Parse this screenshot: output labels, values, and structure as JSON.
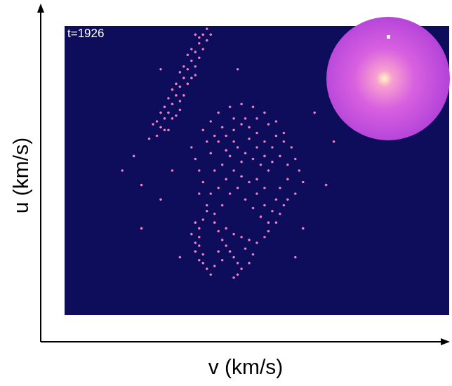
{
  "chart_data": {
    "type": "scatter",
    "xlabel": "v (km/s)",
    "ylabel": "u (km/s)",
    "annotations": [
      "t=1926"
    ],
    "xlim": [
      0,
      100
    ],
    "ylim": [
      0,
      100
    ],
    "tick_labels": false,
    "grid": false,
    "color": "#f080c0",
    "marker": "dot",
    "x": [
      24,
      25,
      26,
      27,
      28,
      29,
      30,
      31,
      32,
      33,
      34,
      35,
      36,
      37,
      26,
      28,
      30,
      32,
      34,
      36,
      23,
      25,
      27,
      29,
      31,
      33,
      35,
      27,
      29,
      31,
      33,
      35,
      37,
      22,
      24,
      28,
      30,
      32,
      34,
      26,
      30,
      34,
      38,
      40,
      42,
      44,
      46,
      48,
      50,
      52,
      54,
      56,
      58,
      45,
      47,
      49,
      51,
      53,
      43,
      41,
      39,
      38,
      37,
      36,
      38,
      40,
      43,
      46,
      49,
      52,
      55,
      57,
      59,
      60,
      61,
      58,
      56,
      55,
      57,
      54,
      52,
      50,
      48,
      46,
      44,
      42,
      40,
      38,
      36,
      35,
      34,
      33,
      35,
      37,
      39,
      41,
      43,
      45,
      47,
      49,
      51,
      53,
      62,
      60,
      58,
      56,
      55,
      44,
      50,
      48,
      52,
      54,
      46,
      42,
      50,
      52,
      47,
      44,
      41,
      39,
      57,
      55,
      53,
      50,
      37,
      36,
      35,
      35,
      35,
      36,
      36,
      37,
      38,
      34,
      33,
      34,
      34,
      35,
      39,
      40,
      41,
      42,
      43,
      44,
      45,
      46,
      45,
      44,
      42,
      44,
      46,
      48,
      50,
      52,
      53,
      40,
      41,
      39,
      47,
      49,
      48,
      15,
      18,
      20,
      25,
      70,
      65,
      30,
      60,
      25,
      45,
      20,
      68,
      28,
      62
    ],
    "values": [
      62,
      65,
      68,
      70,
      73,
      76,
      79,
      82,
      85,
      88,
      91,
      94,
      97,
      99,
      64,
      68,
      74,
      80,
      86,
      92,
      66,
      70,
      75,
      80,
      86,
      92,
      96,
      64,
      69,
      76,
      82,
      89,
      95,
      61,
      67,
      78,
      84,
      90,
      97,
      72,
      71,
      83,
      97,
      60,
      62,
      64,
      66,
      65,
      63,
      60,
      58,
      55,
      52,
      58,
      56,
      54,
      52,
      50,
      55,
      52,
      50,
      56,
      60,
      64,
      67,
      70,
      72,
      73,
      72,
      70,
      67,
      63,
      58,
      54,
      50,
      47,
      44,
      40,
      38,
      36,
      38,
      42,
      46,
      48,
      50,
      47,
      44,
      42,
      46,
      50,
      54,
      58,
      42,
      38,
      35,
      38,
      42,
      44,
      40,
      37,
      34,
      32,
      46,
      42,
      40,
      35,
      32,
      60,
      58,
      61,
      55,
      53,
      53,
      57,
      47,
      44,
      68,
      68,
      65,
      62,
      60,
      62,
      66,
      68,
      36,
      33,
      30,
      27,
      24,
      21,
      18,
      16,
      14,
      32,
      28,
      25,
      22,
      19,
      32,
      29,
      26,
      24,
      22,
      20,
      18,
      16,
      14,
      13,
      30,
      28,
      27,
      26,
      25,
      27,
      29,
      22,
      19,
      17,
      23,
      21,
      18,
      50,
      55,
      45,
      40,
      60,
      70,
      20,
      20,
      85,
      85,
      30,
      45,
      50,
      30
    ]
  }
}
